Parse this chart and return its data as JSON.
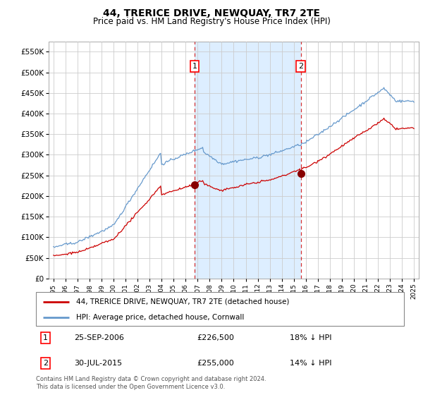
{
  "title": "44, TRERICE DRIVE, NEWQUAY, TR7 2TE",
  "subtitle": "Price paid vs. HM Land Registry's House Price Index (HPI)",
  "title_fontsize": 10,
  "subtitle_fontsize": 8.5,
  "background_color": "#ffffff",
  "plot_bg_color": "#ffffff",
  "shade_color": "#ddeeff",
  "hpi_color": "#6699cc",
  "price_color": "#cc0000",
  "sale1_date_num": 2006.75,
  "sale1_price": 226500,
  "sale2_date_num": 2015.58,
  "sale2_price": 255000,
  "ylim": [
    0,
    575000
  ],
  "xlim_start": 1994.6,
  "xlim_end": 2025.4,
  "legend_label1": "44, TRERICE DRIVE, NEWQUAY, TR7 2TE (detached house)",
  "legend_label2": "HPI: Average price, detached house, Cornwall",
  "table_row1": [
    "1",
    "25-SEP-2006",
    "£226,500",
    "18% ↓ HPI"
  ],
  "table_row2": [
    "2",
    "30-JUL-2015",
    "£255,000",
    "14% ↓ HPI"
  ],
  "footnote": "Contains HM Land Registry data © Crown copyright and database right 2024.\nThis data is licensed under the Open Government Licence v3.0.",
  "yticks": [
    0,
    50000,
    100000,
    150000,
    200000,
    250000,
    300000,
    350000,
    400000,
    450000,
    500000,
    550000
  ],
  "xticks": [
    1995,
    1996,
    1997,
    1998,
    1999,
    2000,
    2001,
    2002,
    2003,
    2004,
    2005,
    2006,
    2007,
    2008,
    2009,
    2010,
    2011,
    2012,
    2013,
    2014,
    2015,
    2016,
    2017,
    2018,
    2019,
    2020,
    2021,
    2022,
    2023,
    2024,
    2025
  ]
}
